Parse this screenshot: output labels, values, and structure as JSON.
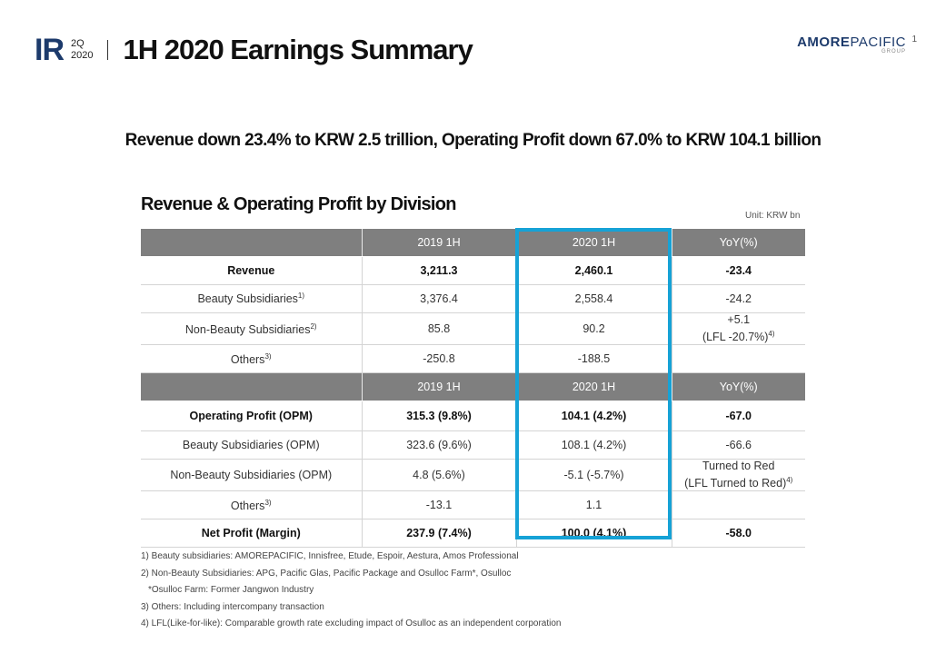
{
  "header": {
    "ir": "IR",
    "quarter": "2Q",
    "year": "2020",
    "title": "1H 2020 Earnings Summary",
    "logo_bold": "AMORE",
    "logo_light": "PACIFIC",
    "logo_sub": "GROUP",
    "page": "1"
  },
  "headline": "Revenue down 23.4% to KRW 2.5 trillion, Operating Profit down 67.0% to KRW 104.1 billion",
  "section_title": "Revenue & Operating Profit by Division",
  "unit": "Unit: KRW bn",
  "table": {
    "header1": {
      "c0": "",
      "c1": "2019 1H",
      "c2": "2020 1H",
      "c3": "YoY(%)"
    },
    "revenue": {
      "label": "Revenue",
      "v2019": "3,211.3",
      "v2020": "2,460.1",
      "yoy": "-23.4"
    },
    "beauty": {
      "label": "Beauty Subsidiaries",
      "sup": "1)",
      "v2019": "3,376.4",
      "v2020": "2,558.4",
      "yoy": "-24.2"
    },
    "nonbeauty": {
      "label": "Non-Beauty Subsidiaries",
      "sup": "2)",
      "v2019": "85.8",
      "v2020": "90.2",
      "yoy_line1": "+5.1",
      "yoy_line2": "(LFL -20.7%)",
      "yoy_sup": "4)"
    },
    "others": {
      "label": "Others",
      "sup": "3)",
      "v2019": "-250.8",
      "v2020": "-188.5",
      "yoy": ""
    },
    "header2": {
      "c0": "",
      "c1": "2019 1H",
      "c2": "2020 1H",
      "c3": "YoY(%)"
    },
    "op": {
      "label": "Operating Profit (OPM)",
      "v2019": "315.3 (9.8%)",
      "v2020": "104.1 (4.2%)",
      "yoy": "-67.0"
    },
    "beauty_op": {
      "label": "Beauty Subsidiaries (OPM)",
      "v2019": "323.6 (9.6%)",
      "v2020": "108.1 (4.2%)",
      "yoy": "-66.6"
    },
    "nonbeauty_op": {
      "label": "Non-Beauty Subsidiaries (OPM)",
      "v2019": "4.8 (5.6%)",
      "v2020": "-5.1 (-5.7%)",
      "yoy_line1": "Turned to Red",
      "yoy_line2": "(LFL Turned to Red)",
      "yoy_sup": "4)"
    },
    "others_op": {
      "label": "Others",
      "sup": "3)",
      "v2019": "-13.1",
      "v2020": "1.1",
      "yoy": ""
    },
    "net": {
      "label": "Net Profit (Margin)",
      "v2019": "237.9 (7.4%)",
      "v2020": "100.0 (4.1%)",
      "yoy": "-58.0"
    }
  },
  "highlight_color": "#16a2d6",
  "notes": [
    "1) Beauty subsidiaries: AMOREPACIFIC, Innisfree, Etude, Espoir, Aestura, Amos Professional",
    "2) Non-Beauty Subsidiaries: APG, Pacific Glas, Pacific Package and Osulloc Farm*, Osulloc",
    "*Osulloc Farm: Former Jangwon Industry",
    "3) Others: Including intercompany transaction",
    "4) LFL(Like-for-like): Comparable growth rate excluding impact of Osulloc as an independent corporation"
  ]
}
